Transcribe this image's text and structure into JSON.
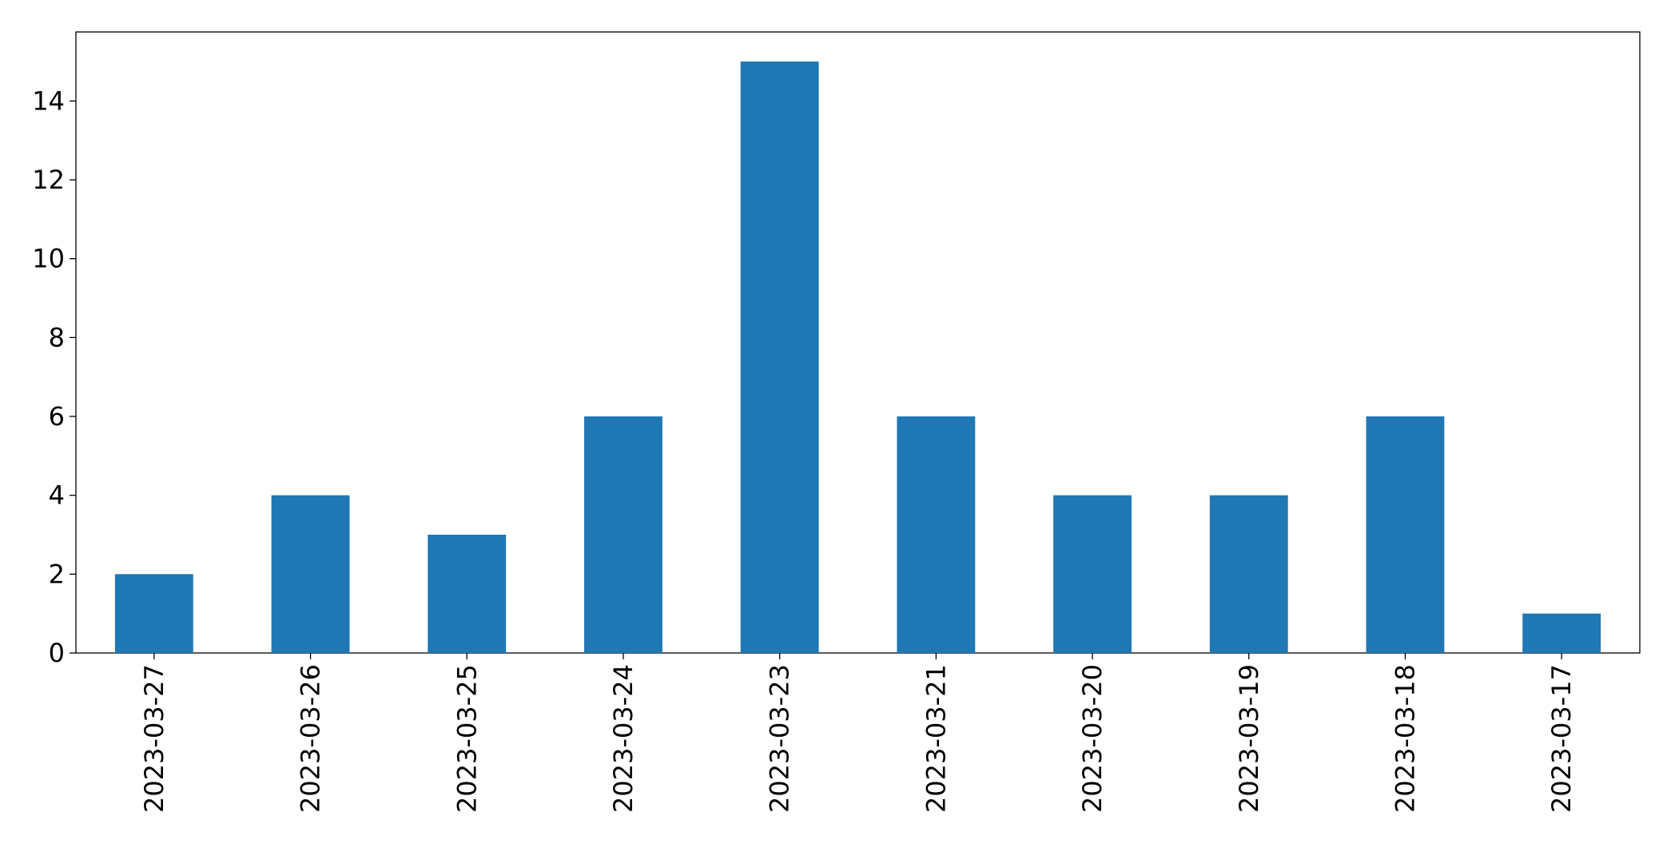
{
  "chart_data": {
    "type": "bar",
    "categories": [
      "2023-03-27",
      "2023-03-26",
      "2023-03-25",
      "2023-03-24",
      "2023-03-23",
      "2023-03-21",
      "2023-03-20",
      "2023-03-19",
      "2023-03-18",
      "2023-03-17"
    ],
    "values": [
      2,
      4,
      3,
      6,
      15,
      6,
      4,
      4,
      6,
      1
    ],
    "color": "#1f77b4",
    "ylim": [
      0,
      15.75
    ],
    "yticks": [
      0,
      2,
      4,
      6,
      8,
      10,
      12,
      14
    ],
    "grid": false
  }
}
